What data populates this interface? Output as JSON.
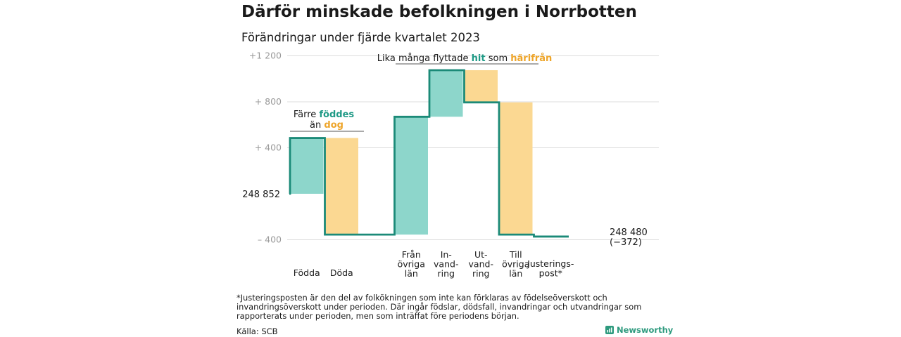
{
  "header": {
    "title": "Därför minskade befolkningen i Norrbotten",
    "subtitle": "Förändringar under fjärde kvartalet 2023"
  },
  "chart_data": {
    "type": "waterfall",
    "start_label": "248  852",
    "end_label_value": "248 480",
    "end_label_change": "(−372)",
    "relative_range": [
      -400,
      1200
    ],
    "y_ticks": [
      {
        "value": -400,
        "label": "–  400"
      },
      {
        "value": 400,
        "label": "+  400"
      },
      {
        "value": 800,
        "label": "+  800"
      },
      {
        "value": 1200,
        "label": "+1  200"
      }
    ],
    "steps": [
      {
        "label": [
          "Födda"
        ],
        "from": 0,
        "to": 485,
        "kind": "in"
      },
      {
        "label": [
          "Döda"
        ],
        "from": 485,
        "to": -355,
        "kind": "out"
      },
      {
        "label": [
          ""
        ],
        "from": -355,
        "to": -355,
        "kind": "gap"
      },
      {
        "label": [
          "Från",
          "övriga",
          "län"
        ],
        "from": -355,
        "to": 670,
        "kind": "in"
      },
      {
        "label": [
          "In-",
          "vand-",
          "ring"
        ],
        "from": 670,
        "to": 1075,
        "kind": "in"
      },
      {
        "label": [
          "Ut-",
          "vand-",
          "ring"
        ],
        "from": 1075,
        "to": 795,
        "kind": "out"
      },
      {
        "label": [
          "Till",
          "övriga",
          "län"
        ],
        "from": 795,
        "to": -355,
        "kind": "out"
      },
      {
        "label": [
          "Justerings-",
          "post*"
        ],
        "from": -355,
        "to": -372,
        "kind": "adjust"
      }
    ],
    "annotations": {
      "fodda": {
        "pre1": "Färre ",
        "hl1": "föddes",
        "pre2": "än ",
        "hl2": "dog"
      },
      "flytt": {
        "pre": "Lika många flyttade ",
        "hl1": "hit",
        "mid": " som ",
        "hl2": "härifrån"
      }
    },
    "grid": true,
    "colors": {
      "in": "#8dd6cb",
      "out": "#fbd892",
      "line": "#1b8a78",
      "teal_text": "#1f9a86",
      "orange_text": "#eea52a",
      "grid": "#dcdcdc"
    }
  },
  "footer": {
    "footnote": "*Justeringsposten är den del av folkökningen som inte kan förklaras av födelseöverskott och invandringsöverskott under perioden. Där ingår födslar, dödsfall, invandringar och utvandringar som rapporterats under perioden, men som inträffat före periodens början.",
    "source": "Källa: SCB",
    "brand": "Newsworthy"
  }
}
